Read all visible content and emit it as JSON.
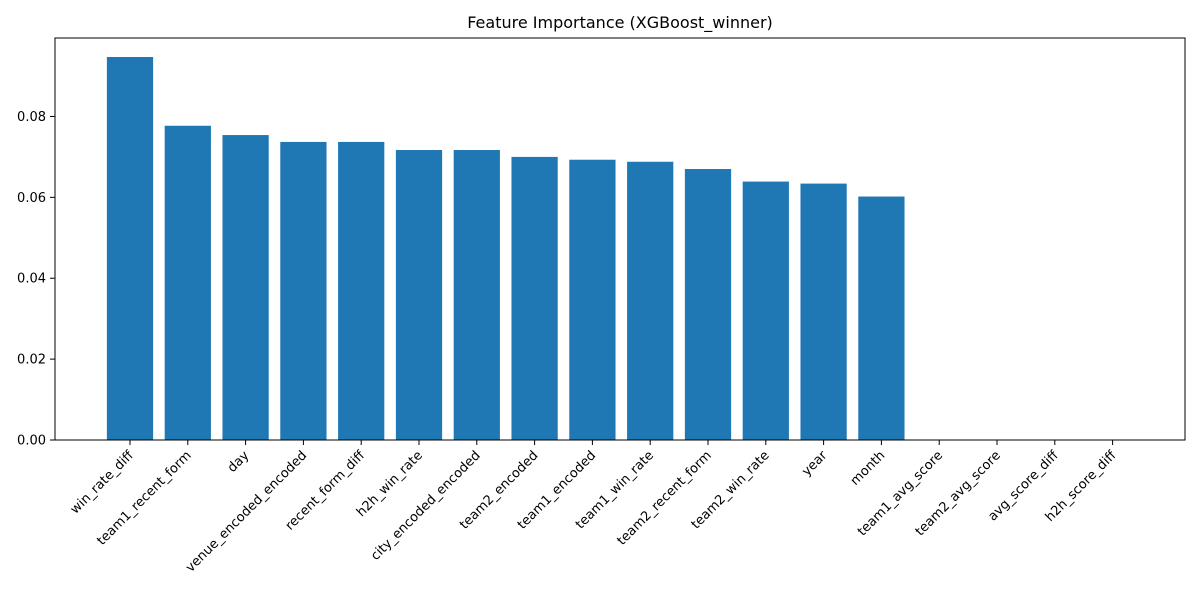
{
  "chart_data": {
    "type": "bar",
    "title": "Feature Importance (XGBoost_winner)",
    "xlabel": "",
    "ylabel": "",
    "categories": [
      "win_rate_diff",
      "team1_recent_form",
      "day",
      "venue_encoded_encoded",
      "recent_form_diff",
      "h2h_win_rate",
      "city_encoded_encoded",
      "team2_encoded",
      "team1_encoded",
      "team1_win_rate",
      "team2_recent_form",
      "team2_win_rate",
      "year",
      "month",
      "team1_avg_score",
      "team2_avg_score",
      "avg_score_diff",
      "h2h_score_diff"
    ],
    "values": [
      0.0947,
      0.0777,
      0.0754,
      0.0737,
      0.0737,
      0.0717,
      0.0717,
      0.07,
      0.0693,
      0.0688,
      0.067,
      0.0639,
      0.0634,
      0.0602,
      0,
      0,
      0,
      0
    ],
    "ylim": [
      0,
      0.0994
    ],
    "yticks": [
      0.0,
      0.02,
      0.04,
      0.06,
      0.08
    ],
    "ytick_labels": [
      "0.00",
      "0.02",
      "0.04",
      "0.06",
      "0.08"
    ],
    "bar_color": "#1f77b4",
    "grid": false,
    "legend": "none"
  }
}
